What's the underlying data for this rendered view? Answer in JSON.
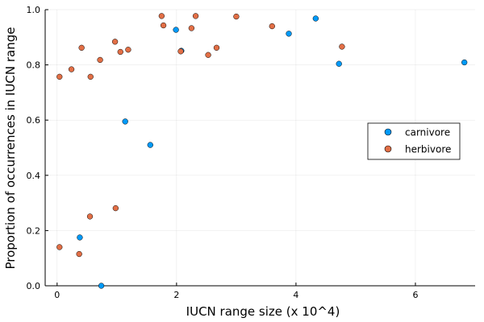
{
  "chart_data": {
    "type": "scatter",
    "title": "",
    "xlabel": "IUCN range size (x 10^4)",
    "ylabel": "Proportion of occurrences in IUCN range",
    "xlim": [
      -0.2,
      7.0
    ],
    "ylim": [
      0,
      1.0
    ],
    "x_ticks": [
      0,
      2,
      4,
      6
    ],
    "y_ticks": [
      0.0,
      0.2,
      0.4,
      0.6,
      0.8,
      1.0
    ],
    "x_tick_labels": [
      "0",
      "2",
      "4",
      "6"
    ],
    "y_tick_labels": [
      "0.0",
      "0.2",
      "0.4",
      "0.6",
      "0.8",
      "1.0"
    ],
    "grid": true,
    "legend_position": "right",
    "series": [
      {
        "name": "carnivore",
        "color": "#009af9",
        "points": [
          [
            0.38,
            0.175
          ],
          [
            0.74,
            0.0
          ],
          [
            1.14,
            0.595
          ],
          [
            1.56,
            0.51
          ],
          [
            1.99,
            0.927
          ],
          [
            2.08,
            0.851
          ],
          [
            3.88,
            0.913
          ],
          [
            4.33,
            0.968
          ],
          [
            4.72,
            0.804
          ],
          [
            6.82,
            0.809
          ]
        ]
      },
      {
        "name": "herbivore",
        "color": "#e26f46",
        "points": [
          [
            0.04,
            0.757
          ],
          [
            0.04,
            0.14
          ],
          [
            0.24,
            0.784
          ],
          [
            0.37,
            0.115
          ],
          [
            0.41,
            0.862
          ],
          [
            0.55,
            0.251
          ],
          [
            0.56,
            0.757
          ],
          [
            0.72,
            0.818
          ],
          [
            0.97,
            0.884
          ],
          [
            0.98,
            0.281
          ],
          [
            1.06,
            0.847
          ],
          [
            1.19,
            0.855
          ],
          [
            1.75,
            0.977
          ],
          [
            1.78,
            0.943
          ],
          [
            2.07,
            0.849
          ],
          [
            2.25,
            0.933
          ],
          [
            2.32,
            0.977
          ],
          [
            2.53,
            0.836
          ],
          [
            2.67,
            0.862
          ],
          [
            3.0,
            0.975
          ],
          [
            3.6,
            0.94
          ],
          [
            4.77,
            0.866
          ]
        ]
      }
    ]
  }
}
